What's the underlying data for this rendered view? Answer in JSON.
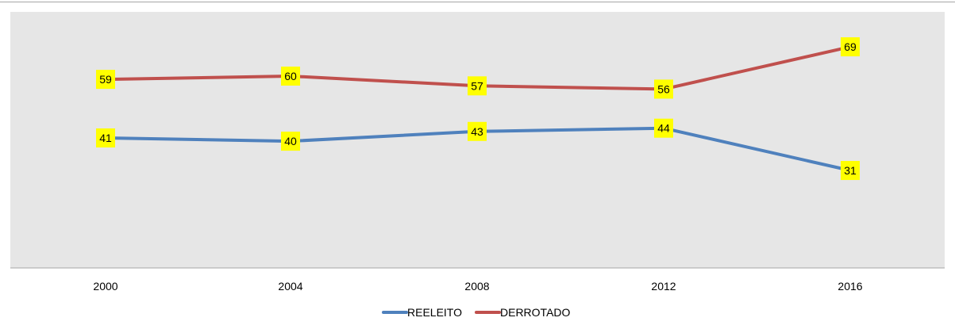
{
  "chart_data": {
    "type": "line",
    "categories": [
      "2000",
      "2004",
      "2008",
      "2012",
      "2016"
    ],
    "series": [
      {
        "name": "REELEITO",
        "values": [
          41,
          40,
          43,
          44,
          31
        ],
        "color": "#4f81bd"
      },
      {
        "name": "DERROTADO",
        "values": [
          59,
          60,
          57,
          56,
          69
        ],
        "color": "#c0504d"
      }
    ],
    "ylim": [
      0,
      80
    ],
    "grid": false,
    "legend_position": "bottom",
    "plot_background": "#e6e6e6",
    "data_label_background": "#ffff00"
  }
}
